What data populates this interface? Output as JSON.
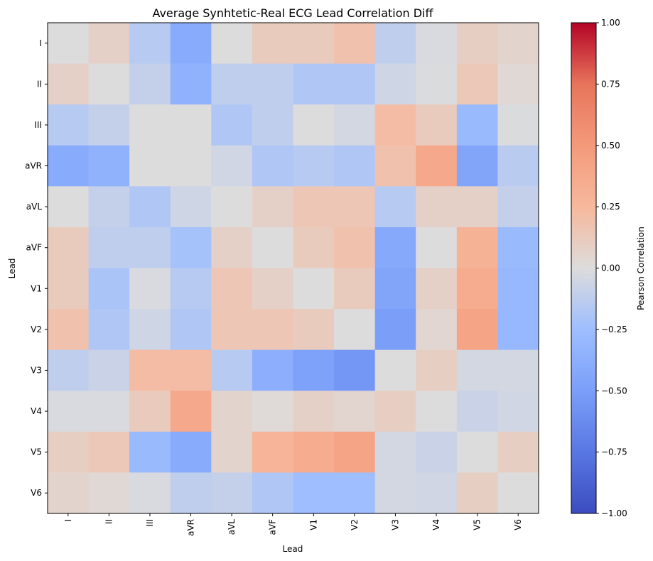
{
  "chart_data": {
    "type": "heatmap",
    "title": "Average Synhtetic-Real ECG Lead Correlation Diff",
    "xlabel": "Lead",
    "ylabel": "Lead",
    "leads": [
      "I",
      "II",
      "III",
      "aVR",
      "aVL",
      "aVF",
      "V1",
      "V2",
      "V3",
      "V4",
      "V5",
      "V6"
    ],
    "values": [
      [
        0.0,
        0.08,
        -0.15,
        -0.4,
        0.0,
        0.12,
        0.12,
        0.18,
        -0.12,
        -0.02,
        0.1,
        0.06
      ],
      [
        0.08,
        0.0,
        -0.1,
        -0.35,
        -0.12,
        -0.12,
        -0.18,
        -0.18,
        -0.06,
        -0.01,
        0.14,
        0.03
      ],
      [
        -0.15,
        -0.1,
        0.0,
        0.0,
        -0.18,
        -0.12,
        0.0,
        -0.04,
        0.22,
        0.12,
        -0.28,
        -0.01
      ],
      [
        -0.4,
        -0.35,
        0.0,
        0.0,
        -0.05,
        -0.18,
        -0.15,
        -0.18,
        0.18,
        0.38,
        -0.45,
        -0.14
      ],
      [
        0.0,
        -0.1,
        -0.18,
        -0.06,
        0.0,
        0.08,
        0.15,
        0.15,
        -0.15,
        0.08,
        0.08,
        -0.1
      ],
      [
        0.12,
        -0.12,
        -0.12,
        -0.22,
        0.08,
        0.0,
        0.12,
        0.18,
        -0.42,
        0.0,
        0.3,
        -0.28
      ],
      [
        0.12,
        -0.2,
        -0.02,
        -0.15,
        0.15,
        0.08,
        0.0,
        0.12,
        -0.45,
        0.08,
        0.35,
        -0.3
      ],
      [
        0.18,
        -0.18,
        -0.06,
        -0.18,
        0.15,
        0.15,
        0.12,
        0.0,
        -0.5,
        0.04,
        0.42,
        -0.3
      ],
      [
        -0.12,
        -0.08,
        0.22,
        0.22,
        -0.15,
        -0.38,
        -0.48,
        -0.55,
        0.0,
        0.1,
        -0.04,
        -0.04
      ],
      [
        -0.02,
        -0.02,
        0.12,
        0.38,
        0.06,
        0.02,
        0.08,
        0.05,
        0.1,
        0.0,
        -0.08,
        -0.05
      ],
      [
        0.1,
        0.14,
        -0.28,
        -0.4,
        0.06,
        0.28,
        0.35,
        0.42,
        -0.04,
        -0.08,
        0.0,
        0.1
      ],
      [
        0.06,
        0.03,
        -0.02,
        -0.12,
        -0.1,
        -0.18,
        -0.25,
        -0.25,
        -0.04,
        -0.05,
        0.1,
        0.0
      ]
    ],
    "zlim": [
      -1.0,
      1.0
    ],
    "colormap": "coolwarm",
    "colorbar": {
      "label": "Pearson Correlation",
      "ticks": [
        1.0,
        0.75,
        0.5,
        0.25,
        0.0,
        -0.25,
        -0.5,
        -0.75,
        -1.0
      ],
      "tick_labels": [
        "1.00",
        "0.75",
        "0.50",
        "0.25",
        "0.00",
        "−0.25",
        "−0.50",
        "−0.75",
        "−1.00"
      ]
    }
  }
}
